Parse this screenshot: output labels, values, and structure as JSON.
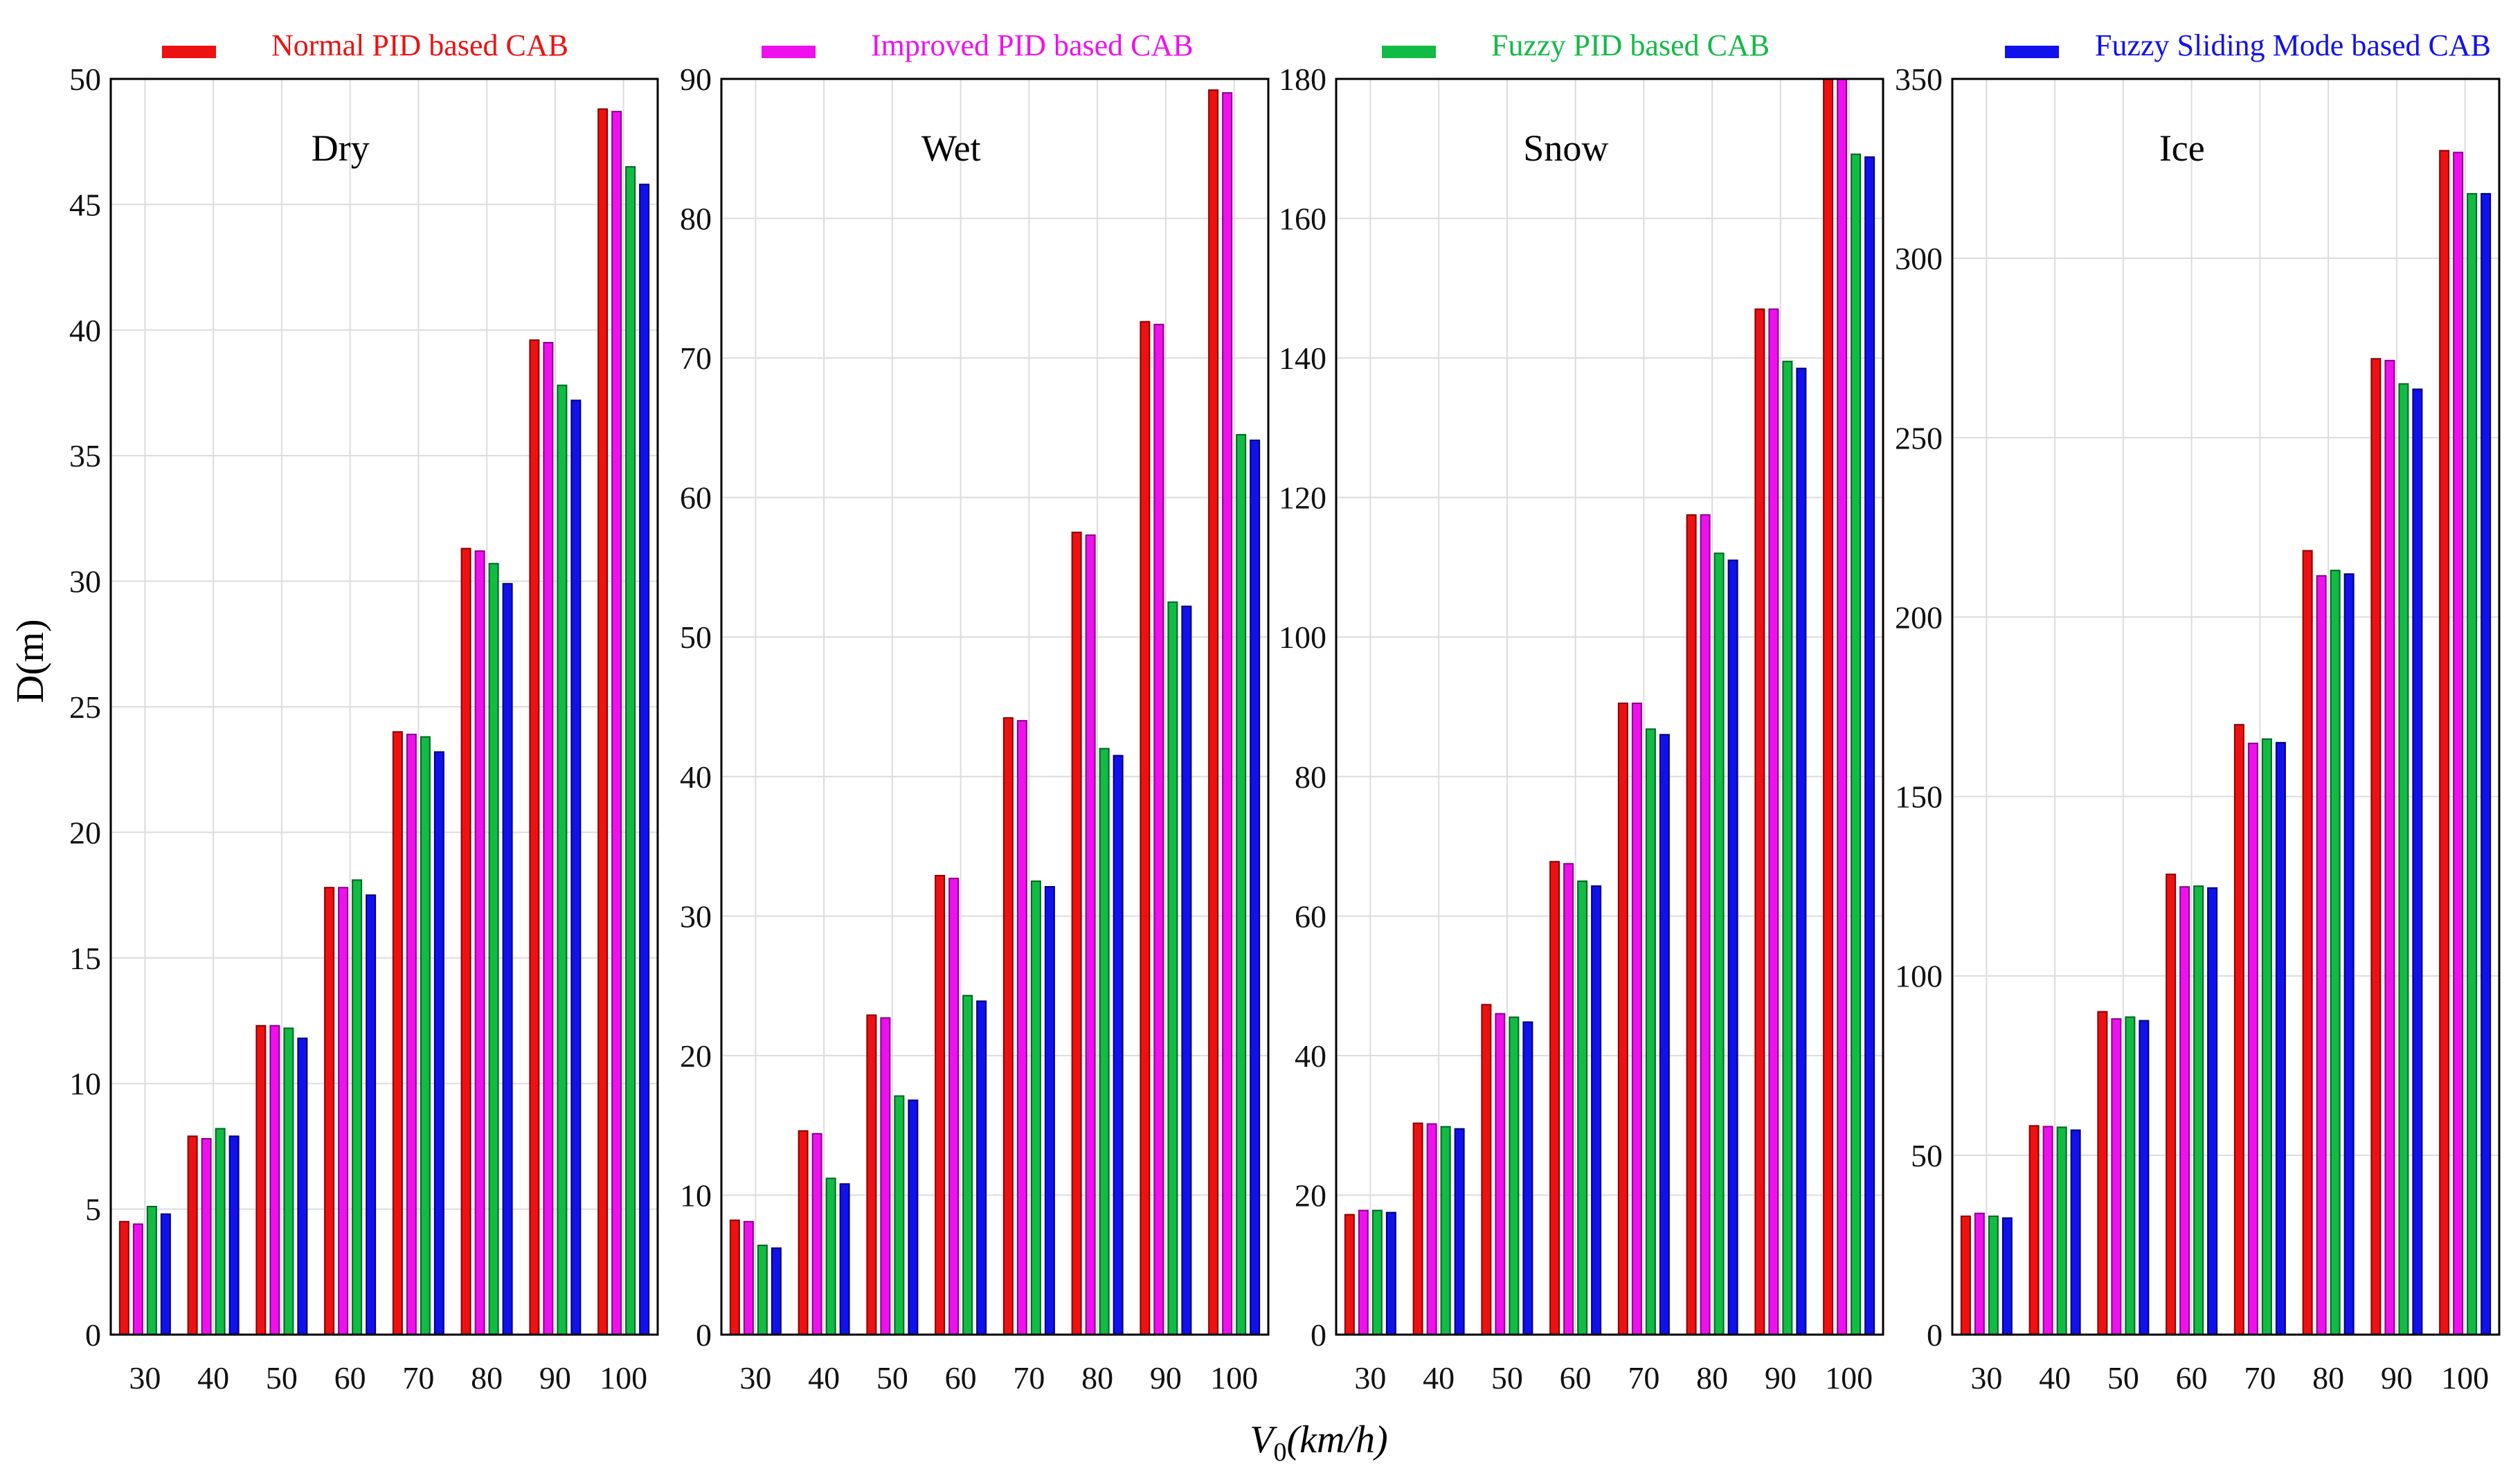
{
  "chart_data": {
    "type": "bar",
    "ylabel": "D(m)",
    "xlabel": "V0(km/h)",
    "xlabel_main": "V",
    "xlabel_sub": "0",
    "xlabel_rest": "(km/h)",
    "categories": [
      "30",
      "40",
      "50",
      "60",
      "70",
      "80",
      "90",
      "100"
    ],
    "legend": [
      {
        "name": "Normal PID based CAB",
        "color": "#ee1111"
      },
      {
        "name": "Improved PID based CAB",
        "color": "#ee11ee"
      },
      {
        "name": "Fuzzy PID based CAB",
        "color": "#11bb44"
      },
      {
        "name": "Fuzzy Sliding Mode based CAB",
        "color": "#1111ee"
      }
    ],
    "panels": [
      {
        "title": "Dry",
        "ylim": [
          0,
          50
        ],
        "yticks": [
          0,
          5,
          10,
          15,
          20,
          25,
          30,
          35,
          40,
          45,
          50
        ],
        "series": [
          {
            "name": "Normal PID based CAB",
            "values": [
              4.5,
              7.9,
              12.3,
              17.8,
              24.0,
              31.3,
              39.6,
              48.8
            ]
          },
          {
            "name": "Improved PID based CAB",
            "values": [
              4.4,
              7.8,
              12.3,
              17.8,
              23.9,
              31.2,
              39.5,
              48.7
            ]
          },
          {
            "name": "Fuzzy PID based CAB",
            "values": [
              5.1,
              8.2,
              12.2,
              18.1,
              23.8,
              30.7,
              37.8,
              46.5
            ]
          },
          {
            "name": "Fuzzy Sliding Mode based CAB",
            "values": [
              4.8,
              7.9,
              11.8,
              17.5,
              23.2,
              29.9,
              37.2,
              45.8
            ]
          }
        ]
      },
      {
        "title": "Wet",
        "ylim": [
          0,
          90
        ],
        "yticks": [
          0,
          10,
          20,
          30,
          40,
          50,
          60,
          70,
          80,
          90
        ],
        "series": [
          {
            "name": "Normal PID based CAB",
            "values": [
              8.2,
              14.6,
              22.9,
              32.9,
              44.2,
              57.5,
              72.6,
              89.2
            ]
          },
          {
            "name": "Improved PID based CAB",
            "values": [
              8.1,
              14.4,
              22.7,
              32.7,
              44.0,
              57.3,
              72.4,
              89.0
            ]
          },
          {
            "name": "Fuzzy PID based CAB",
            "values": [
              6.4,
              11.2,
              17.1,
              24.3,
              32.5,
              42.0,
              52.5,
              64.5
            ]
          },
          {
            "name": "Fuzzy Sliding Mode based CAB",
            "values": [
              6.2,
              10.8,
              16.8,
              23.9,
              32.1,
              41.5,
              52.2,
              64.1
            ]
          }
        ]
      },
      {
        "title": "Snow",
        "ylim": [
          0,
          180
        ],
        "yticks": [
          0,
          20,
          40,
          60,
          80,
          100,
          120,
          140,
          160,
          180
        ],
        "series": [
          {
            "name": "Normal PID based CAB",
            "values": [
              17.2,
              30.3,
              47.3,
              67.8,
              90.5,
              117.5,
              147.0,
              180.0
            ]
          },
          {
            "name": "Improved PID based CAB",
            "values": [
              17.8,
              30.2,
              46.0,
              67.5,
              90.5,
              117.5,
              147.0,
              180.0
            ]
          },
          {
            "name": "Fuzzy PID based CAB",
            "values": [
              17.8,
              29.8,
              45.5,
              65.0,
              86.8,
              112.0,
              139.5,
              169.2
            ]
          },
          {
            "name": "Fuzzy Sliding Mode based CAB",
            "values": [
              17.5,
              29.5,
              44.8,
              64.3,
              86.0,
              111.0,
              138.5,
              168.8
            ]
          }
        ]
      },
      {
        "title": "Ice",
        "ylim": [
          0,
          350
        ],
        "yticks": [
          0,
          50,
          100,
          150,
          200,
          250,
          300,
          350
        ],
        "series": [
          {
            "name": "Normal PID based CAB",
            "values": [
              33.0,
              58.2,
              90.0,
              128.3,
              170.0,
              218.5,
              272.0,
              330.0
            ]
          },
          {
            "name": "Improved PID based CAB",
            "values": [
              33.8,
              58.0,
              88.0,
              124.8,
              164.8,
              211.5,
              271.5,
              329.5
            ]
          },
          {
            "name": "Fuzzy PID based CAB",
            "values": [
              33.0,
              57.8,
              88.5,
              125.0,
              166.0,
              213.0,
              265.0,
              318.0
            ]
          },
          {
            "name": "Fuzzy Sliding Mode based CAB",
            "values": [
              32.5,
              57.0,
              87.5,
              124.5,
              165.0,
              212.0,
              263.5,
              318.0
            ]
          }
        ]
      }
    ]
  }
}
